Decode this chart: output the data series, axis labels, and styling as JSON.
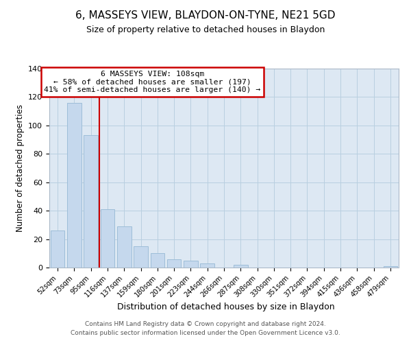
{
  "title": "6, MASSEYS VIEW, BLAYDON-ON-TYNE, NE21 5GD",
  "subtitle": "Size of property relative to detached houses in Blaydon",
  "xlabel": "Distribution of detached houses by size in Blaydon",
  "ylabel": "Number of detached properties",
  "bar_labels": [
    "52sqm",
    "73sqm",
    "95sqm",
    "116sqm",
    "137sqm",
    "159sqm",
    "180sqm",
    "201sqm",
    "223sqm",
    "244sqm",
    "266sqm",
    "287sqm",
    "308sqm",
    "330sqm",
    "351sqm",
    "372sqm",
    "394sqm",
    "415sqm",
    "436sqm",
    "458sqm",
    "479sqm"
  ],
  "bar_values": [
    26,
    116,
    93,
    41,
    29,
    15,
    10,
    6,
    5,
    3,
    0,
    2,
    0,
    0,
    0,
    0,
    0,
    0,
    0,
    0,
    1
  ],
  "bar_color": "#c5d8ed",
  "bar_edge_color": "#9dbdd8",
  "ylim": [
    0,
    140
  ],
  "yticks": [
    0,
    20,
    40,
    60,
    80,
    100,
    120,
    140
  ],
  "property_line_color": "#cc0000",
  "annotation_title": "6 MASSEYS VIEW: 108sqm",
  "annotation_line1": "← 58% of detached houses are smaller (197)",
  "annotation_line2": "41% of semi-detached houses are larger (140) →",
  "annotation_box_color": "#ffffff",
  "annotation_box_edge": "#cc0000",
  "footer1": "Contains HM Land Registry data © Crown copyright and database right 2024.",
  "footer2": "Contains public sector information licensed under the Open Government Licence v3.0.",
  "background_color": "#ffffff",
  "plot_bg_color": "#dde8f3",
  "grid_color": "#b8cfe0"
}
